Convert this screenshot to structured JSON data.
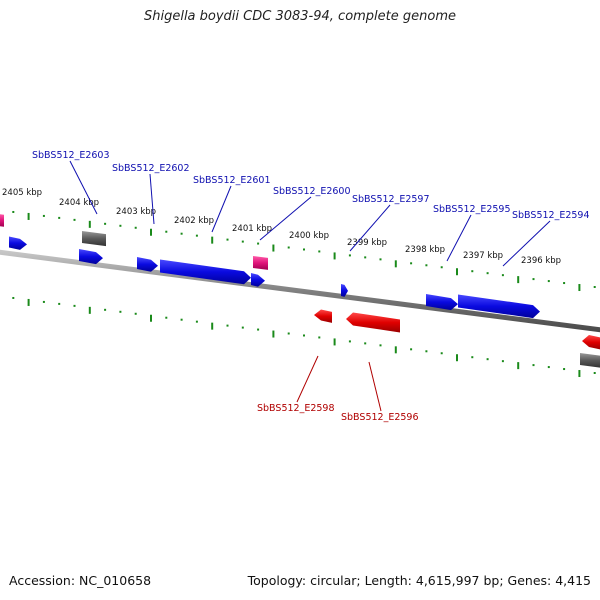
{
  "title": "Shigella boydii CDC 3083-94, complete genome",
  "footer": {
    "accession": "Accession: NC_010658",
    "summary": "Topology: circular; Length: 4,615,997 bp; Genes: 4,415"
  },
  "colors": {
    "forward_gene": "#0a0ae0",
    "reverse_gene": "#e00000",
    "gray_feature": "#6a6a6a",
    "pink_feature": "#e0147a",
    "tick": "#1a8a1a",
    "backbone": "#808080",
    "forward_label": "#1010b0",
    "reverse_label": "#b00000"
  },
  "scale_labels": [
    "2405 kbp",
    "2404 kbp",
    "2403 kbp",
    "2402 kbp",
    "2401 kbp",
    "2400 kbp",
    "2399 kbp",
    "2398 kbp",
    "2397 kbp",
    "2396 kbp"
  ],
  "forward_gene_labels": [
    "SbBS512_E2603",
    "SbBS512_E2602",
    "SbBS512_E2601",
    "SbBS512_E2600",
    "SbBS512_E2597",
    "SbBS512_E2595",
    "SbBS512_E2594"
  ],
  "reverse_gene_labels": [
    "SbBS512_E2598",
    "SbBS512_E2596"
  ]
}
